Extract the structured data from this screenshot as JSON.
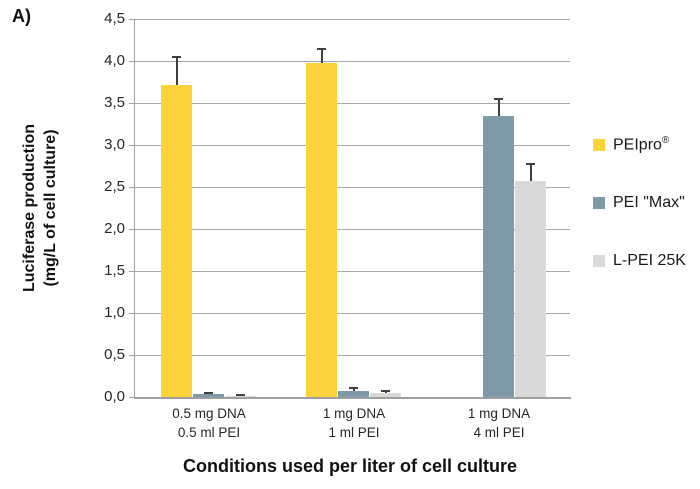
{
  "panel_label": "A)",
  "colors": {
    "gridline": "#A9A9A9",
    "axis": "#A0A0A0",
    "error_bar": "#3F3F3F",
    "peipro_yellow": "#FDD33C",
    "pei_max_bluegray": "#7E99A8",
    "lpei_lightgray": "#D9D9D9"
  },
  "chart_data": {
    "type": "bar",
    "title": "",
    "xlabel": "Conditions used per liter of cell culture",
    "ylabel_lines": [
      "Luciferase production",
      "(mg/L of cell culture)"
    ],
    "ylim": [
      0,
      4.5
    ],
    "ytick_step": 0.5,
    "ytick_labels": [
      "4,5",
      "4,0",
      "3,5",
      "3,0",
      "2,5",
      "2,0",
      "1,5",
      "1,0",
      "0,5",
      "0,0"
    ],
    "grid": true,
    "legend_position": "right",
    "categories": [
      {
        "lines": [
          "0.5 mg DNA",
          "0.5 ml PEI"
        ]
      },
      {
        "lines": [
          "1 mg DNA",
          "1 ml PEI"
        ]
      },
      {
        "lines": [
          "1 mg DNA",
          "4 ml PEI"
        ]
      }
    ],
    "series": [
      {
        "name": "PEIpro®",
        "color": "#FDD33C",
        "values": [
          3.72,
          3.98,
          0
        ],
        "errors": [
          0.34,
          0.17,
          0
        ]
      },
      {
        "name": "PEI \"Max\"",
        "color": "#7E99A8",
        "values": [
          0.03,
          0.07,
          3.35
        ],
        "errors": [
          0.03,
          0.05,
          0.21
        ]
      },
      {
        "name": "L-PEI 25K",
        "color": "#D9D9D9",
        "values": [
          0.01,
          0.05,
          2.57
        ],
        "errors": [
          0.02,
          0.03,
          0.22
        ]
      }
    ]
  }
}
